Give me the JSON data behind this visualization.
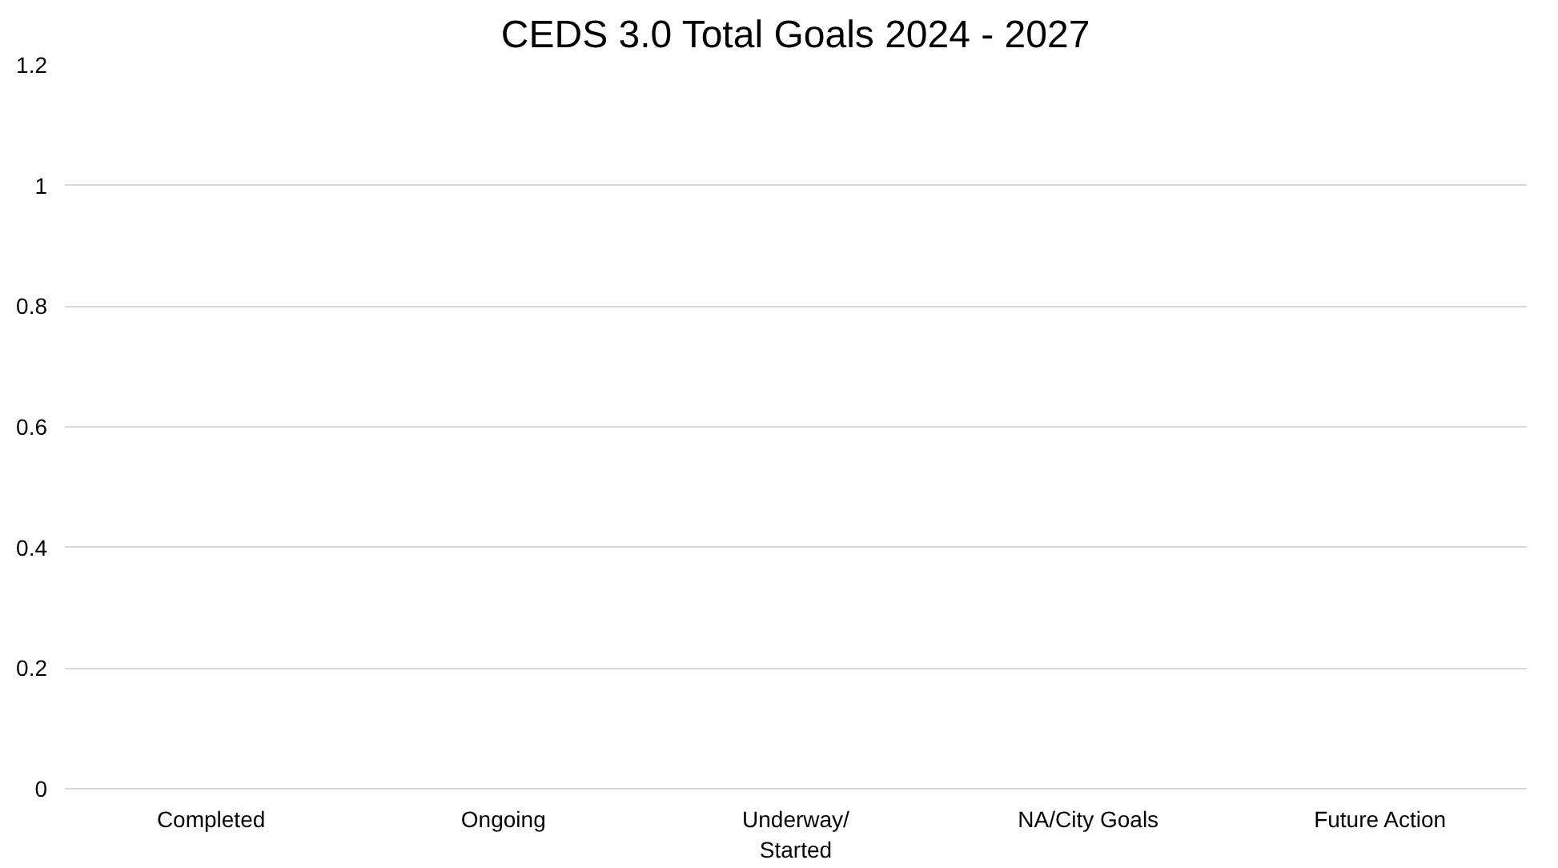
{
  "chart_data": {
    "type": "bar",
    "title": "CEDS 3.0 Total Goals 2024 - 2027",
    "categories": [
      "Completed",
      "Ongoing",
      "Underway/\nStarted",
      "NA/City Goals",
      "Future Action"
    ],
    "values": [
      0,
      0,
      0,
      0,
      0
    ],
    "ylim": [
      0,
      1.2
    ],
    "yticks": [
      0,
      0.2,
      0.4,
      0.6,
      0.8,
      1,
      1.2
    ],
    "grid": "y"
  }
}
